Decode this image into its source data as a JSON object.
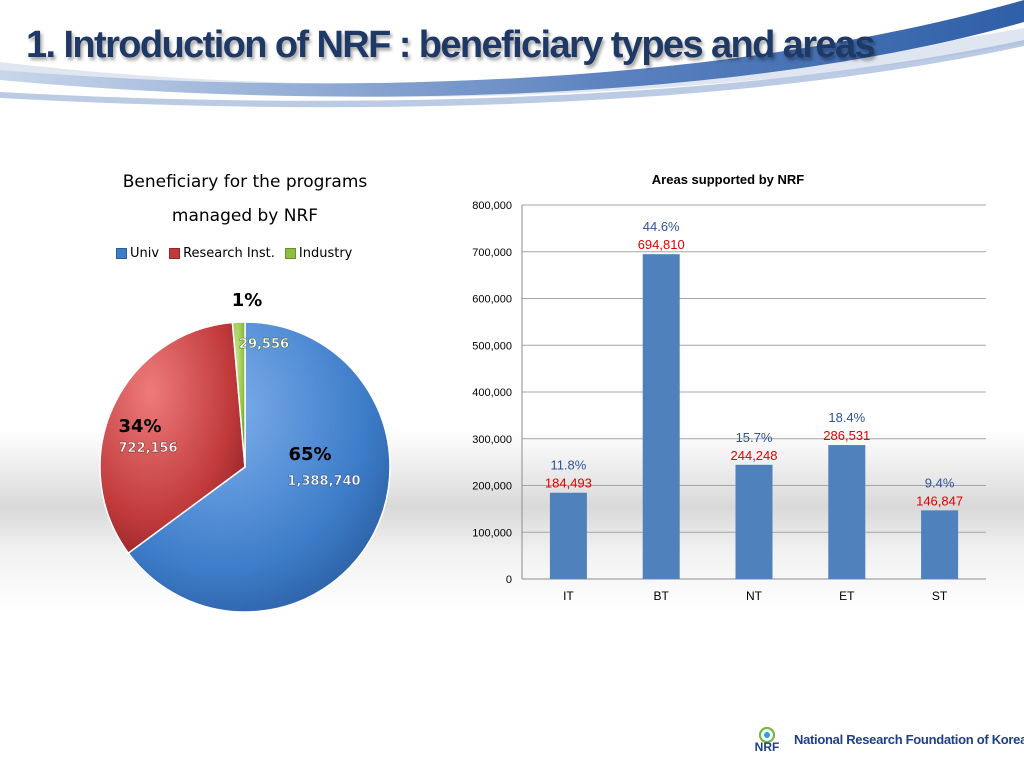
{
  "slide": {
    "title_number": "1.",
    "title_text": " Introduction of NRF : beneficiary types and areas"
  },
  "colors": {
    "title": "#1f3966",
    "univ": "#3d7cc9",
    "research": "#c0393b",
    "industry": "#8cbf3f",
    "bar": "#4f81bd",
    "bar_value_label": "#e00000",
    "bar_pct_label": "#2f5496",
    "logo_text": "#1f3f8a"
  },
  "logo": {
    "mark": "NRF",
    "text": "National Research Foundation of Korea",
    "icon": "nrf-logo-icon"
  },
  "chart_data": [
    {
      "type": "pie",
      "title": "Beneficiary for the programs managed by NRF",
      "title_lines": [
        "Beneficiary for the programs",
        "managed by NRF"
      ],
      "legend_position": "top",
      "categories": [
        "Univ",
        "Research Inst.",
        "Industry"
      ],
      "values": [
        1388740,
        722156,
        29556
      ],
      "percent_labels": [
        "65%",
        "34%",
        "1%"
      ],
      "value_labels": [
        "1,388,740",
        "722,156",
        "29,556"
      ]
    },
    {
      "type": "bar",
      "title": "Areas supported by NRF",
      "categories": [
        "IT",
        "BT",
        "NT",
        "ET",
        "ST"
      ],
      "values": [
        184493,
        694810,
        244248,
        286531,
        146847
      ],
      "value_labels": [
        "184,493",
        "694,810",
        "244,248",
        "286,531",
        "146,847"
      ],
      "percent_labels": [
        "11.8%",
        "44.6%",
        "15.7%",
        "18.4%",
        "9.4%"
      ],
      "ylim": [
        0,
        800000
      ],
      "yticks": [
        0,
        100000,
        200000,
        300000,
        400000,
        500000,
        600000,
        700000,
        800000
      ],
      "ytick_labels": [
        "0",
        "100,000",
        "200,000",
        "300,000",
        "400,000",
        "500,000",
        "600,000",
        "700,000",
        "800,000"
      ],
      "grid": true,
      "legend": false
    }
  ]
}
